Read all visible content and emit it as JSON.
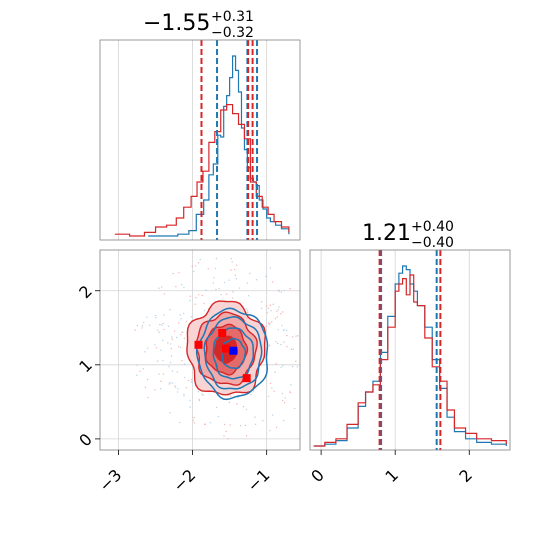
{
  "chart_data": [
    {
      "type": "histogram",
      "panel": "top-left",
      "title": {
        "value": "−1.55",
        "upper": "+0.31",
        "lower": "−0.32"
      },
      "xlim": [
        -3.25,
        -0.55
      ],
      "quantile_lines": {
        "blue": [
          -1.67,
          -1.26,
          -1.13
        ],
        "red": [
          -1.88,
          -1.25,
          -1.19
        ]
      },
      "blue_series": {
        "color": "#1f77b4",
        "x": [
          -2.6,
          -2.4,
          -2.2,
          -2.05,
          -1.95,
          -1.85,
          -1.78,
          -1.72,
          -1.66,
          -1.62,
          -1.58,
          -1.54,
          -1.5,
          -1.46,
          -1.42,
          -1.38,
          -1.34,
          -1.3,
          -1.26,
          -1.22,
          -1.18,
          -1.14,
          -1.1,
          -1.05,
          -1.0,
          -0.95,
          -0.88,
          -0.8,
          -0.7
        ],
        "y": [
          0.0,
          0.0,
          0.01,
          0.03,
          0.12,
          0.2,
          0.34,
          0.4,
          0.56,
          0.55,
          0.72,
          0.78,
          0.88,
          1.0,
          0.92,
          0.8,
          0.6,
          0.48,
          0.38,
          0.32,
          0.3,
          0.28,
          0.2,
          0.15,
          0.1,
          0.08,
          0.06,
          0.04,
          0.01
        ]
      },
      "red_series": {
        "color": "#d62728",
        "x": [
          -3.05,
          -2.85,
          -2.65,
          -2.5,
          -2.35,
          -2.22,
          -2.12,
          -2.02,
          -1.94,
          -1.86,
          -1.78,
          -1.7,
          -1.62,
          -1.54,
          -1.46,
          -1.38,
          -1.3,
          -1.22,
          -1.14,
          -1.06,
          -0.98,
          -0.9,
          -0.8,
          -0.7
        ],
        "y": [
          0.01,
          0.0,
          0.02,
          0.05,
          0.06,
          0.1,
          0.16,
          0.22,
          0.3,
          0.36,
          0.52,
          0.58,
          0.7,
          0.73,
          0.68,
          0.62,
          0.54,
          0.3,
          0.22,
          0.16,
          0.12,
          0.08,
          0.05,
          0.02
        ]
      }
    },
    {
      "type": "contour",
      "panel": "bottom-left",
      "xlim": [
        -3.25,
        -0.55
      ],
      "ylim": [
        -0.15,
        2.55
      ],
      "xticks": [
        -3,
        -2,
        -1
      ],
      "yticks": [
        0,
        1,
        2
      ],
      "xtick_labels": [
        "−3",
        "−2",
        "−1"
      ],
      "ytick_labels": [
        "0",
        "1",
        "2"
      ],
      "red_contour": {
        "color": "#d62728",
        "center": [
          -1.55,
          1.21
        ],
        "levels_sigma": [
          0.6,
          1.1,
          1.6,
          2.1
        ]
      },
      "blue_contour": {
        "color": "#1f77b4",
        "center": [
          -1.45,
          1.15
        ],
        "levels_sigma": [
          0.7,
          1.2,
          1.7,
          2.1
        ]
      },
      "red_points": [
        [
          -1.92,
          1.27
        ],
        [
          -1.6,
          1.43
        ],
        [
          -1.55,
          1.22
        ],
        [
          -1.27,
          0.82
        ]
      ],
      "blue_points": [
        [
          -1.45,
          1.19
        ]
      ]
    },
    {
      "type": "histogram",
      "panel": "bottom-right",
      "title": {
        "value": "1.21",
        "upper": "+0.40",
        "lower": "−0.40"
      },
      "xlim": [
        -0.15,
        2.55
      ],
      "xticks": [
        0,
        1,
        2
      ],
      "xtick_labels": [
        "0",
        "1",
        "2"
      ],
      "quantile_lines": {
        "blue": [
          0.81,
          1.56
        ],
        "red": [
          0.79,
          1.61
        ]
      },
      "blue_series": {
        "color": "#1f77b4",
        "x": [
          -0.1,
          0.05,
          0.2,
          0.35,
          0.5,
          0.6,
          0.7,
          0.8,
          0.9,
          1.0,
          1.05,
          1.1,
          1.15,
          1.2,
          1.25,
          1.3,
          1.4,
          1.5,
          1.6,
          1.7,
          1.8,
          1.95,
          2.1,
          2.3,
          2.5
        ],
        "y": [
          0.0,
          0.01,
          0.03,
          0.1,
          0.22,
          0.3,
          0.36,
          0.52,
          0.72,
          0.9,
          0.96,
          1.0,
          0.98,
          0.9,
          0.86,
          0.78,
          0.66,
          0.48,
          0.32,
          0.16,
          0.08,
          0.04,
          0.02,
          0.01,
          0.0
        ]
      },
      "red_series": {
        "color": "#d62728",
        "x": [
          -0.1,
          0.05,
          0.2,
          0.35,
          0.5,
          0.6,
          0.7,
          0.8,
          0.9,
          1.0,
          1.05,
          1.1,
          1.15,
          1.2,
          1.25,
          1.3,
          1.4,
          1.5,
          1.6,
          1.7,
          1.8,
          1.95,
          2.1,
          2.3,
          2.5
        ],
        "y": [
          0.0,
          0.02,
          0.04,
          0.12,
          0.24,
          0.3,
          0.34,
          0.48,
          0.66,
          0.86,
          0.9,
          0.93,
          0.84,
          0.95,
          0.8,
          0.78,
          0.6,
          0.44,
          0.36,
          0.2,
          0.1,
          0.07,
          0.04,
          0.03,
          0.01
        ]
      }
    }
  ]
}
